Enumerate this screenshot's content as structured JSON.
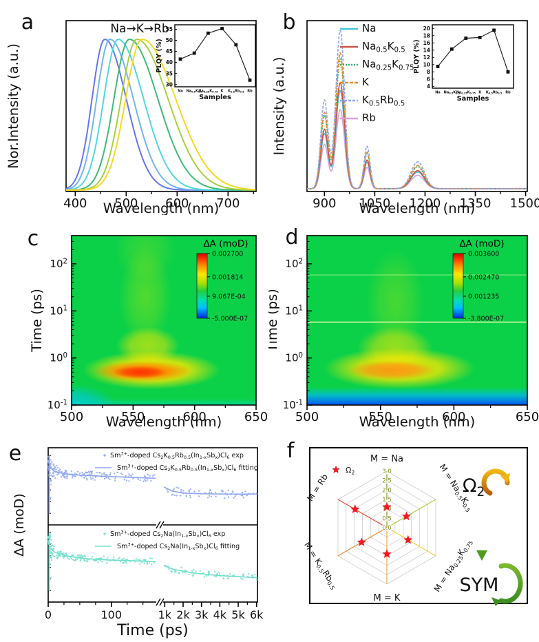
{
  "figure_title": "Sm3+-doped double perovskite photophysics figure",
  "panels": {
    "a": {
      "label": "a",
      "xlabel": "Wavelength (nm)",
      "ylabel": "Nor.Intensity (a.u.)",
      "annotation": "Na→K→Rb",
      "chart_data": {
        "type": "line",
        "xlim": [
          382,
          755
        ],
        "xticks": [
          400,
          500,
          600,
          700
        ],
        "xminor": [
          450,
          550,
          650,
          750
        ],
        "series": [
          {
            "name": "Na",
            "color": "#6674ee",
            "peak": 458,
            "sigma_l": 25,
            "sigma_r": 42
          },
          {
            "name": "Na_{0.5}K_{0.5}",
            "color": "#6fb4f4",
            "peak": 468,
            "sigma_l": 26,
            "sigma_r": 46
          },
          {
            "name": "Na_{0.25}K_{0.75}",
            "color": "#4fd8e2",
            "peak": 484,
            "sigma_l": 28,
            "sigma_r": 50
          },
          {
            "name": "K",
            "color": "#3eba77",
            "peak": 506,
            "sigma_l": 30,
            "sigma_r": 56
          },
          {
            "name": "K_{0.5}Rb_{0.5}",
            "color": "#a7cf3e",
            "peak": 521,
            "sigma_l": 31,
            "sigma_r": 61
          },
          {
            "name": "Rb",
            "color": "#f8d820",
            "peak": 531,
            "sigma_l": 32,
            "sigma_r": 66
          }
        ]
      },
      "inset": {
        "type": "line+marker",
        "ylabel": "PLQY (%)",
        "xlabel": "Samples",
        "categories": [
          "Na",
          "Na_{0.5}K_{0.5}",
          "Na_{0.25}K_{0.75}",
          "K",
          "K_{0.5}Rb_{0.5}",
          "Rb"
        ],
        "values": [
          41.5,
          44.2,
          53.2,
          55.3,
          48.0,
          32.0
        ],
        "yticks": [
          30,
          35,
          40,
          45,
          50,
          55
        ],
        "ylim": [
          29,
          57
        ]
      }
    },
    "b": {
      "label": "b",
      "xlabel": "Wavelength (nm)",
      "ylabel": "Intensity (a.u.)",
      "chart_data": {
        "type": "line",
        "xlim": [
          848,
          1505
        ],
        "xticks": [
          900,
          1050,
          1200,
          1350,
          1500
        ],
        "peaks": [
          {
            "center": 900,
            "sigma": 11,
            "amp": 0.56
          },
          {
            "center": 947,
            "sigma": 13,
            "amp": 1.0
          },
          {
            "center": 1027,
            "sigma": 9,
            "amp": 0.27
          },
          {
            "center": 1178,
            "sigma": 20,
            "amp": 0.17
          }
        ],
        "series": [
          {
            "name": "Na",
            "color": "#45c8d8",
            "dash": "",
            "scale": 0.62
          },
          {
            "name": "Na_{0.5}K_{0.5}",
            "color": "#cd5548",
            "dash": "",
            "scale": 0.67
          },
          {
            "name": "Na_{0.25}K_{0.75}",
            "color": "#2cb06a",
            "dash": "2 2",
            "scale": 0.82
          },
          {
            "name": "K",
            "color": "#f08a1c",
            "dash": "5 2",
            "scale": 0.86
          },
          {
            "name": "K_{0.5}Rb_{0.5}",
            "color": "#8fa6f2",
            "dash": "4 2",
            "scale": 1.0
          },
          {
            "name": "Rb",
            "color": "#d8a4dc",
            "dash": "",
            "scale": 0.5
          }
        ]
      },
      "inset": {
        "type": "line+marker",
        "ylabel": "PLQY (%)",
        "xlabel": "Samples",
        "categories": [
          "Na",
          "Na_{0.5}K_{0.5}",
          "Na_{0.25}K_{0.75}",
          "K",
          "K_{0.5}Rb_{0.5}",
          "Rb"
        ],
        "values": [
          9.5,
          14.3,
          17.3,
          17.5,
          19.5,
          8.0
        ],
        "yticks": [
          4,
          6,
          8,
          10,
          12,
          14,
          16,
          18,
          20
        ],
        "ylim": [
          3.5,
          21
        ]
      }
    },
    "c": {
      "label": "c",
      "xlabel": "Wavelength (nm)",
      "ylabel": "Time (ps)",
      "chart_data": {
        "type": "heatmap",
        "xlim": [
          500,
          650
        ],
        "xticks": [
          500,
          550,
          600,
          650
        ],
        "ylog_range": [
          -1,
          2.6
        ],
        "ytick_labels": [
          "10^{-1}",
          "10^{0}",
          "10^{1}",
          "10^{2}"
        ],
        "colorbar": {
          "title": "ΔA (moD)",
          "labels": [
            "0.002700",
            "0.001814",
            "9.067E-04",
            "-5.000E-07"
          ]
        },
        "hotspot": {
          "wavelength_nm": 560,
          "time_ps": 0.55,
          "intensity": "max red core ~0.0027"
        },
        "base_color": "#0bd148"
      }
    },
    "d": {
      "label": "d",
      "xlabel": "Wavelength (nm)",
      "ylabel": "Time (ps)",
      "chart_data": {
        "type": "heatmap",
        "xlim": [
          500,
          650
        ],
        "xticks": [
          500,
          550,
          600,
          650
        ],
        "ylog_range": [
          -1,
          2.6
        ],
        "ytick_labels": [
          "10^{-1}",
          "10^{0}",
          "10^{1}",
          "10^{2}"
        ],
        "colorbar": {
          "title": "ΔA (moD)",
          "labels": [
            "0.003600",
            "0.002470",
            "0.001235",
            "-3.800E-07"
          ]
        },
        "hotspot": {
          "wavelength_nm": 560,
          "time_ps": 0.6,
          "intensity": "orange core ~0.0030"
        },
        "base_color": "#0bd148"
      }
    },
    "e": {
      "label": "e",
      "xlabel": "Time (ps)",
      "ylabel": "ΔA (moD)",
      "chart_data": {
        "type": "decay",
        "x_break": {
          "left_lim": [
            0,
            170
          ],
          "left_ticks": [
            0,
            100
          ],
          "right_lim": [
            950,
            6050
          ],
          "right_ticks": [
            1000,
            2000,
            3000,
            4000,
            5000,
            6000
          ],
          "right_tick_labels": [
            "1k",
            "2k",
            "3k",
            "4k",
            "5k",
            "6k"
          ]
        },
        "subplots": [
          {
            "color": "#8ea6f3",
            "legend_exp": "Sm^{3+}-doped Cs_{2}K_{0.5}Rb_{0.5}(In_{1-x}Sb_{x})Cl_{6} exp",
            "legend_fit": "Sm^{3+}-doped Cs_{2}K_{0.5}Rb_{0.5}(In_{1-x}Sb_{x})Cl_{6} fitting",
            "fit_left": [
              [
                0,
                0.9
              ],
              [
                3,
                0.79
              ],
              [
                10,
                0.73
              ],
              [
                30,
                0.69
              ],
              [
                60,
                0.67
              ],
              [
                100,
                0.655
              ],
              [
                170,
                0.63
              ]
            ],
            "fit_right": [
              [
                950,
                0.5
              ],
              [
                1400,
                0.44
              ],
              [
                2000,
                0.41
              ],
              [
                3000,
                0.4
              ],
              [
                4500,
                0.395
              ],
              [
                6050,
                0.395
              ]
            ],
            "noise": 0.065,
            "n_left": 160,
            "n_right": 65,
            "seed": 42
          },
          {
            "color": "#72dfcb",
            "legend_exp": "Sm^{3+}-doped Cs_{2}Na(In_{1-x}Sb_{x})Cl_{6} exp",
            "legend_fit": "Sm^{3+}-doped Cs_{2}Na(In_{1-x}Sb_{x})Cl_{6} fitting",
            "fit_left": [
              [
                0,
                0.84
              ],
              [
                3,
                0.74
              ],
              [
                10,
                0.68
              ],
              [
                30,
                0.62
              ],
              [
                60,
                0.58
              ],
              [
                100,
                0.56
              ],
              [
                170,
                0.54
              ]
            ],
            "fit_right": [
              [
                950,
                0.48
              ],
              [
                1500,
                0.42
              ],
              [
                2500,
                0.37
              ],
              [
                4000,
                0.33
              ],
              [
                6050,
                0.3
              ]
            ],
            "noise": 0.05,
            "n_left": 160,
            "n_right": 65,
            "seed": 77
          }
        ]
      }
    },
    "f": {
      "label": "f",
      "chart_data": {
        "type": "radar",
        "legend_label": "Ω_{2}",
        "star_color": "#ee1c25",
        "rticks": [
          0.0,
          0.5,
          1.0,
          1.5,
          2.0,
          2.5,
          3.0
        ],
        "rmax": 3.0,
        "tick_color": "#7f8c1a",
        "axes": [
          {
            "label": "M = Na",
            "color": "#7a9a28",
            "value": 1.1
          },
          {
            "label": "M = Na_{0.5}K_{0.5}",
            "color": "#aacc3a",
            "value": 1.2
          },
          {
            "label": "M = Na_{0.25}K_{0.75}",
            "color": "#e8d23c",
            "value": 1.3
          },
          {
            "label": "M = K",
            "color": "#f2a93b",
            "value": 1.4
          },
          {
            "label": "M = K_{0.5}Rb_{0.5}",
            "color": "#ee8630",
            "value": 1.55
          },
          {
            "label": "M = Rb",
            "color": "#e84b2c",
            "value": 1.95
          }
        ],
        "side": {
          "top_label": "Ω_{2}",
          "bottom_label": "SYM"
        }
      }
    }
  }
}
